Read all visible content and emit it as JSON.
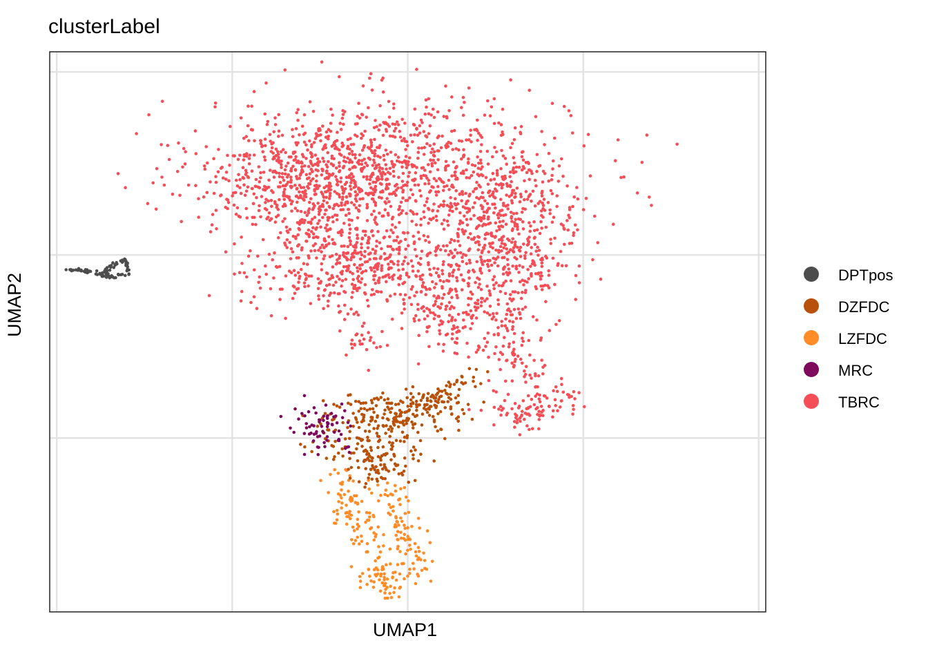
{
  "chart_data": {
    "type": "scatter",
    "title": "clusterLabel",
    "xlabel": "UMAP1",
    "ylabel": "UMAP2",
    "grid": true,
    "tick_labels_shown": false,
    "legend_placement": "right",
    "series": [
      {
        "name": "DPTpos",
        "color": "#4D4D4D",
        "clusters": [
          {
            "path": [
              [
                -9.6,
                1.5
              ],
              [
                -9.0,
                1.45
              ],
              [
                -8.5,
                1.35
              ],
              [
                -8.4,
                1.15
              ],
              [
                -8.35,
                1.45
              ],
              [
                -8.2,
                1.75
              ],
              [
                -7.9,
                2.05
              ],
              [
                -7.75,
                1.65
              ],
              [
                -7.8,
                1.25
              ],
              [
                -8.15,
                1.1
              ],
              [
                -8.6,
                1.2
              ]
            ],
            "n": 90,
            "spread": 0.06
          }
        ]
      },
      {
        "name": "DZFDC",
        "color": "#B8520A",
        "clusters": [
          {
            "center": [
              -0.9,
              -7.6
            ],
            "sx": 0.9,
            "sy": 0.9,
            "n": 150
          },
          {
            "center": [
              0.3,
              -6.2
            ],
            "sx": 0.9,
            "sy": 0.55,
            "n": 110
          },
          {
            "center": [
              -0.6,
              -9.1
            ],
            "sx": 0.45,
            "sy": 0.6,
            "n": 60
          },
          {
            "path": [
              [
                0.1,
                -6.6
              ],
              [
                0.9,
                -5.6
              ],
              [
                1.6,
                -4.7
              ],
              [
                2.1,
                -4.1
              ]
            ],
            "n": 70,
            "spread": 0.22
          }
        ]
      },
      {
        "name": "LZFDC",
        "color": "#FF8C26",
        "clusters": [
          {
            "path": [
              [
                -1.9,
                -9.4
              ],
              [
                -1.65,
                -10.8
              ],
              [
                -1.3,
                -12.2
              ],
              [
                -0.9,
                -13.4
              ],
              [
                -0.7,
                -14.6
              ],
              [
                -0.8,
                -15.6
              ],
              [
                -0.3,
                -16.1
              ],
              [
                0.2,
                -15.5
              ],
              [
                0.35,
                -14.4
              ],
              [
                0.3,
                -13.2
              ],
              [
                0.05,
                -12.2
              ],
              [
                -0.05,
                -11.3
              ],
              [
                -0.35,
                -9.9
              ]
            ],
            "n": 240,
            "spread": 0.3
          }
        ]
      },
      {
        "name": "MRC",
        "color": "#7E0A5E",
        "clusters": [
          {
            "center": [
              -2.15,
              -7.1
            ],
            "sx": 0.45,
            "sy": 0.7,
            "n": 70
          }
        ]
      },
      {
        "name": "TBRC",
        "color": "#F54E57",
        "clusters": [
          {
            "center": [
              -0.5,
              6.8
            ],
            "sx": 2.6,
            "sy": 2.0,
            "n": 1050
          },
          {
            "center": [
              3.0,
              3.0
            ],
            "sx": 1.0,
            "sy": 2.5,
            "n": 500
          },
          {
            "center": [
              -2.8,
              6.2
            ],
            "sx": 1.3,
            "sy": 1.4,
            "n": 300
          },
          {
            "center": [
              -2.0,
              2.0
            ],
            "sx": 1.2,
            "sy": 1.3,
            "n": 200
          },
          {
            "center": [
              0.0,
              1.2
            ],
            "sx": 1.8,
            "sy": 1.1,
            "n": 320
          },
          {
            "center": [
              1.3,
              -1.2
            ],
            "sx": 0.6,
            "sy": 1.0,
            "n": 90
          },
          {
            "center": [
              -1.0,
              -2.2
            ],
            "sx": 0.35,
            "sy": 0.5,
            "n": 25
          },
          {
            "center": [
              3.6,
              -6.2
            ],
            "sx": 0.5,
            "sy": 0.55,
            "n": 70
          },
          {
            "path": [
              [
                3.0,
                -1.0
              ],
              [
                3.1,
                -2.8
              ],
              [
                3.6,
                -4.2
              ],
              [
                4.4,
                -5.2
              ],
              [
                4.7,
                -6.0
              ]
            ],
            "n": 90,
            "spread": 0.28
          }
        ]
      }
    ],
    "xlim": [
      -10.0,
      10.4
    ],
    "ylim": [
      -17.2,
      13.4
    ],
    "gridlines_x": [
      -9.8,
      -4.8,
      0.2,
      5.2,
      10.2
    ],
    "gridlines_y": [
      12.3,
      2.3,
      -7.7
    ],
    "legend": [
      "DPTpos",
      "DZFDC",
      "LZFDC",
      "MRC",
      "TBRC"
    ]
  }
}
